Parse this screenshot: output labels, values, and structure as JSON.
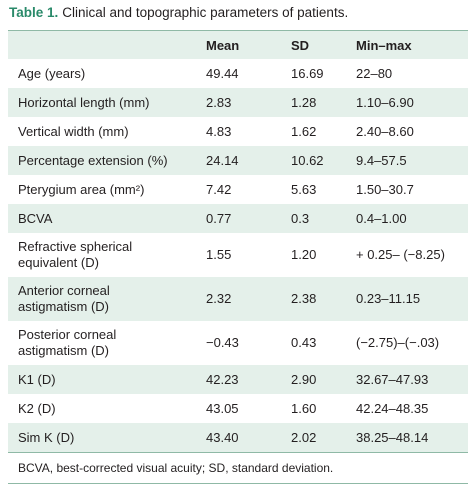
{
  "title": {
    "label": "Table 1.",
    "text": "Clinical and topographic parameters of patients."
  },
  "table": {
    "header": [
      "",
      "Mean",
      "SD",
      "Min–max"
    ],
    "rows": [
      [
        "Age (years)",
        "49.44",
        "16.69",
        "22–80"
      ],
      [
        "Horizontal length (mm)",
        "2.83",
        "1.28",
        "1.10–6.90"
      ],
      [
        "Vertical width (mm)",
        "4.83",
        "1.62",
        "2.40–8.60"
      ],
      [
        "Percentage extension (%)",
        "24.14",
        "10.62",
        "9.4–57.5"
      ],
      [
        "Pterygium area (mm²)",
        "7.42",
        "5.63",
        "1.50–30.7"
      ],
      [
        "BCVA",
        "0.77",
        "0.3",
        "0.4–1.00"
      ],
      [
        "Refractive spherical equivalent (D)",
        "1.55",
        "1.20",
        "+ 0.25– (−8.25)"
      ],
      [
        "Anterior corneal astigmatism (D)",
        "2.32",
        "2.38",
        "0.23–11.15"
      ],
      [
        "Posterior corneal astigmatism (D)",
        "−0.43",
        "0.43",
        "(−2.75)–(−.03)"
      ],
      [
        "K1 (D)",
        "42.23",
        "2.90",
        "32.67–47.93"
      ],
      [
        "K2 (D)",
        "43.05",
        "1.60",
        "42.24–48.35"
      ],
      [
        "Sim K (D)",
        "43.40",
        "2.02",
        "38.25–48.14"
      ]
    ],
    "footnote": "BCVA, best-corrected visual acuity; SD, standard deviation."
  }
}
